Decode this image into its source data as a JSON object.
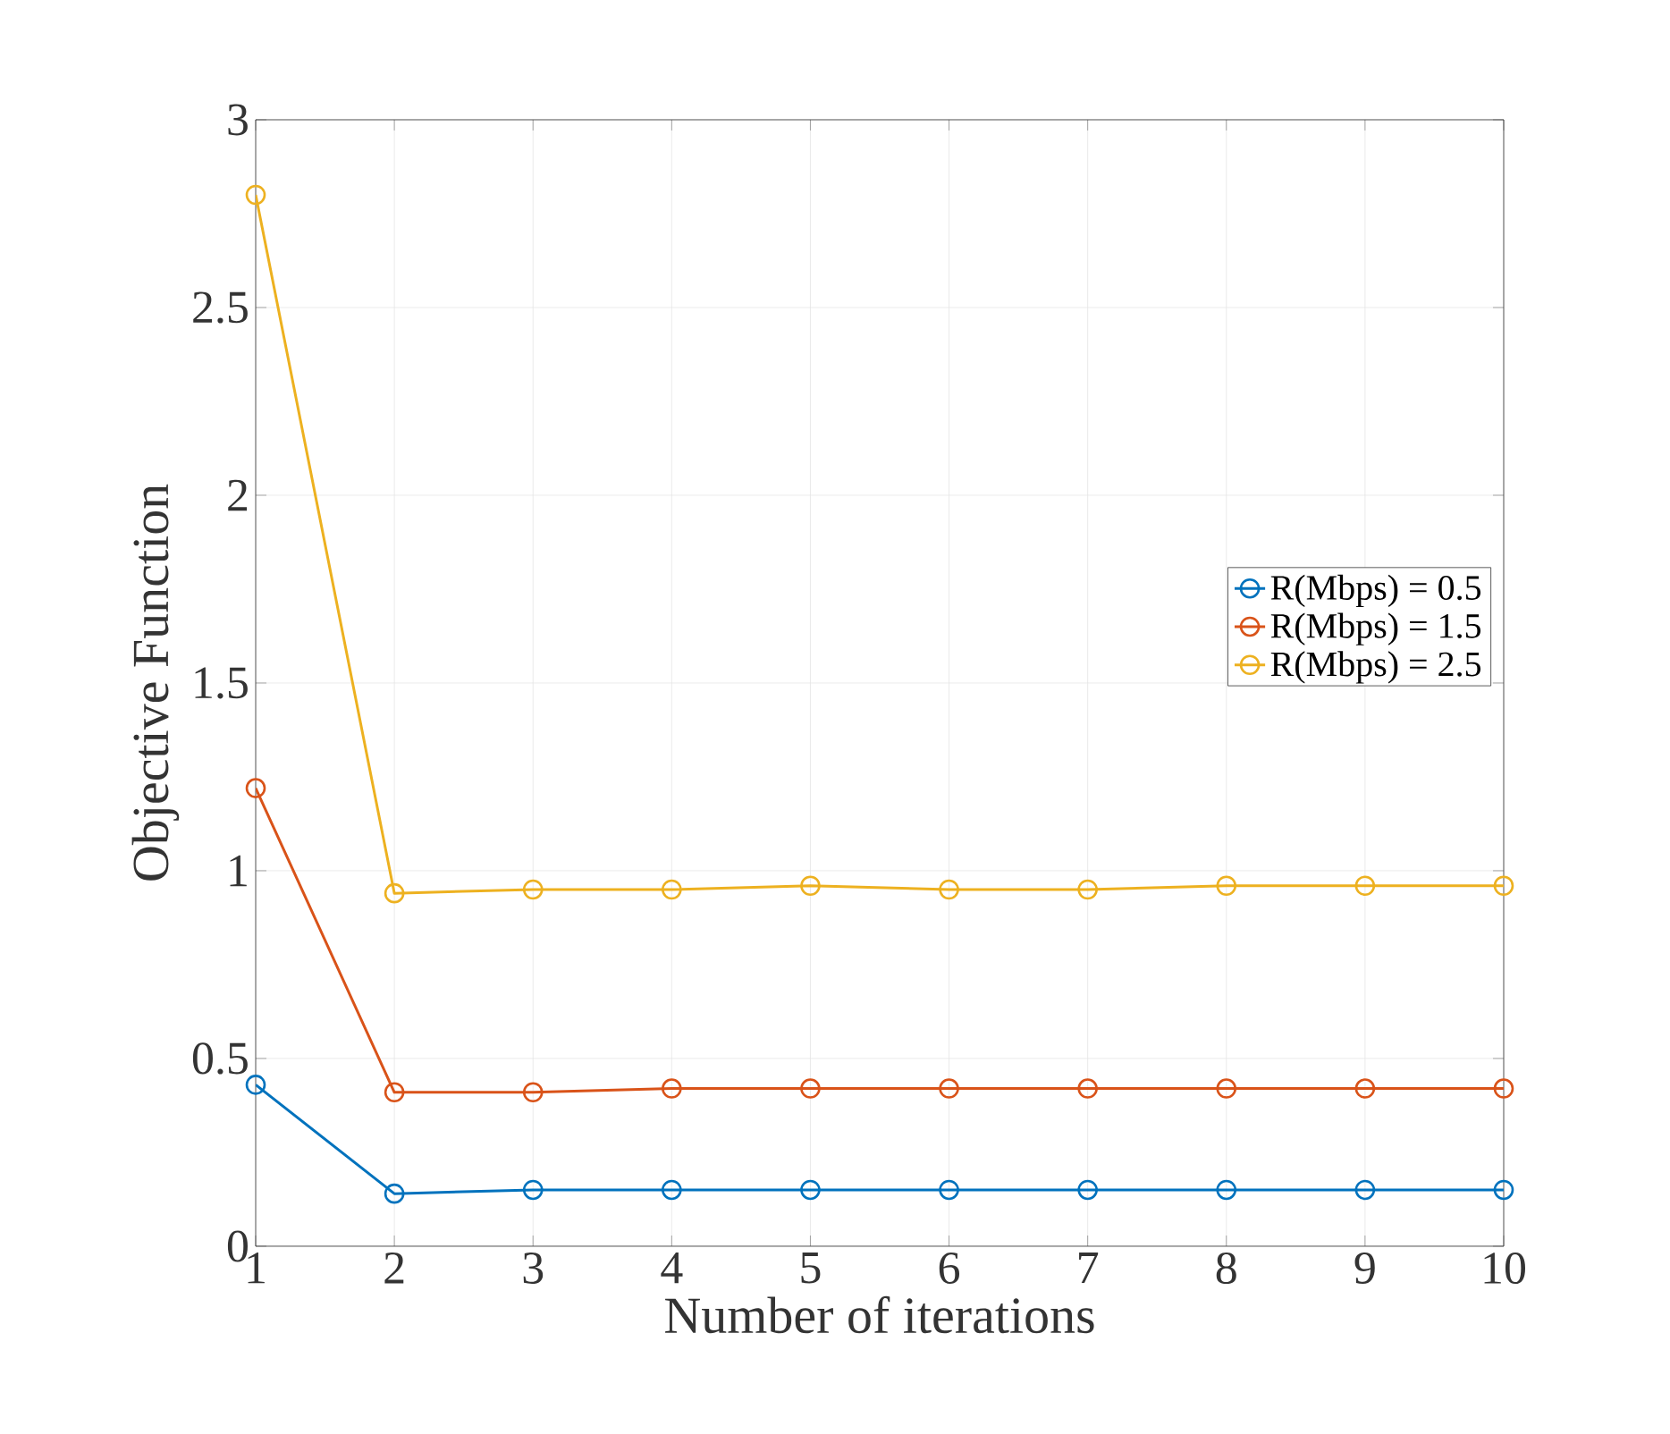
{
  "chart_data": {
    "type": "line",
    "xlabel": "Number of iterations",
    "ylabel": "Objective Function",
    "x": [
      1,
      2,
      3,
      4,
      5,
      6,
      7,
      8,
      9,
      10
    ],
    "series": [
      {
        "name": "R(Mbps) = 0.5",
        "color": "#0072bd",
        "values": [
          0.43,
          0.14,
          0.15,
          0.15,
          0.15,
          0.15,
          0.15,
          0.15,
          0.15,
          0.15
        ]
      },
      {
        "name": "R(Mbps) = 1.5",
        "color": "#d95319",
        "values": [
          1.22,
          0.41,
          0.41,
          0.42,
          0.42,
          0.42,
          0.42,
          0.42,
          0.42,
          0.42
        ]
      },
      {
        "name": "R(Mbps) = 2.5",
        "color": "#edb120",
        "values": [
          2.8,
          0.94,
          0.95,
          0.95,
          0.96,
          0.95,
          0.95,
          0.96,
          0.96,
          0.96
        ]
      }
    ],
    "xlim": [
      1,
      10
    ],
    "xticks": [
      1,
      2,
      3,
      4,
      5,
      6,
      7,
      8,
      9,
      10
    ],
    "ylim": [
      0,
      3
    ],
    "yticks": [
      0,
      0.5,
      1,
      1.5,
      2,
      2.5,
      3
    ],
    "grid": true,
    "legend": "right",
    "marker": "circle",
    "line_style": "solid"
  }
}
